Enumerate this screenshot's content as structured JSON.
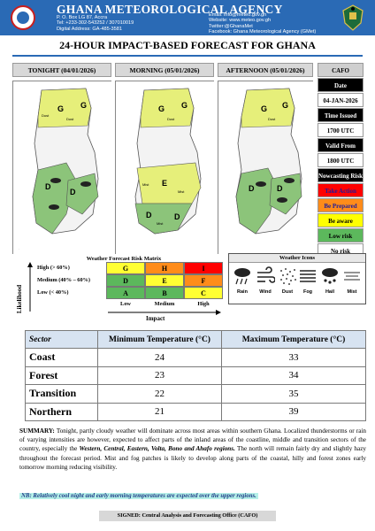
{
  "header": {
    "agency": "GHANA METEOROLOGICAL AGENCY",
    "address_lines": [
      "P. O. Box LG 87, Accra",
      "Tel: +233-302-543252 / 307010019",
      "Digital Address: GA-485-3581"
    ],
    "contact_lines": [
      "Email: info@meteo.gov.gh",
      "Website: www.meteo.gov.gh",
      "Twitter:@GhanaMet",
      "Facebook: Ghana Meteorological Agency (GMet)"
    ],
    "accent_color": "#2a6ab5"
  },
  "title": "24-HOUR IMPACT-BASED FORECAST FOR GHANA",
  "panels": [
    {
      "label": "TONIGHT (04/01/2026)"
    },
    {
      "label": "MORNING (05/01/2026)"
    },
    {
      "label": "AFTERNOON (05/01/2026)"
    }
  ],
  "map_labels": {
    "dust": "Dust",
    "mist": "Mist",
    "risk_letters": [
      "G",
      "D",
      "E"
    ]
  },
  "cafo": {
    "title": "CAFO",
    "date_label": "Date",
    "date": "04-JAN-2026",
    "time_issued_label": "Time Issued",
    "time_issued": "1700 UTC",
    "valid_from_label": "Valid From",
    "valid_from": "1800 UTC",
    "nowcasting_label": "Nowcasting Risk",
    "risks": [
      {
        "label": "Take Action",
        "color": "#ff0000",
        "text_color": "#1c1c9c"
      },
      {
        "label": "Be Prepared",
        "color": "#ff8c1a",
        "text_color": "#1c1c9c"
      },
      {
        "label": "Be aware",
        "color": "#ffff00",
        "text_color": "#000000"
      },
      {
        "label": "Low risk",
        "color": "#5cb85c",
        "text_color": "#000000"
      },
      {
        "label": "No risk",
        "color": "#ffffff",
        "text_color": "#000000"
      }
    ]
  },
  "risk_matrix": {
    "title": "Weather Forecast Risk Matrix",
    "y_label": "Likelihood",
    "x_label": "Impact",
    "rows": [
      {
        "label": "High (> 60%)",
        "cells": [
          "G",
          "H",
          "I"
        ]
      },
      {
        "label": "Medium (40% – 60%)",
        "cells": [
          "D",
          "E",
          "F"
        ]
      },
      {
        "label": "Low (< 40%)",
        "cells": [
          "A",
          "B",
          "C"
        ]
      }
    ],
    "cols": [
      "Low",
      "Medium",
      "High"
    ],
    "colors": [
      [
        "#ffff33",
        "#ff8c1a",
        "#ff0000"
      ],
      [
        "#5cb85c",
        "#ffff33",
        "#ff8c1a"
      ],
      [
        "#5cb85c",
        "#5cb85c",
        "#ffff33"
      ]
    ]
  },
  "weather_icons": {
    "title": "Weather Icons",
    "items": [
      {
        "label": "Rain",
        "icon": "rain-icon"
      },
      {
        "label": "Wind",
        "icon": "wind-icon"
      },
      {
        "label": "Dust",
        "icon": "dust-icon"
      },
      {
        "label": "Fog",
        "icon": "fog-icon"
      },
      {
        "label": "Hail",
        "icon": "hail-icon"
      },
      {
        "label": "Mist",
        "icon": "mist-icon"
      }
    ]
  },
  "temperature_table": {
    "headers": [
      "Sector",
      "Minimum Temperature (°C)",
      "Maximum Temperature (°C)"
    ],
    "rows": [
      [
        "Coast",
        "24",
        "33"
      ],
      [
        "Forest",
        "23",
        "34"
      ],
      [
        "Transition",
        "22",
        "35"
      ],
      [
        "Northern",
        "21",
        "39"
      ]
    ]
  },
  "summary": {
    "label": "SUMMARY:",
    "text_1": " Tonight, partly cloudy weather will dominate across most areas within southern Ghana. Localized thunderstorms or rain of varying intensities are however, expected to affect parts of the inland areas of the coastline, middle and transition sectors of the country, especially the ",
    "regions": "Western, Central, Eastern, Volta, Bono and Ahafo regions.",
    "text_2": " The north will remain fairly dry and slightly hazy throughout the forecast period. Mist and fog patches is likely to develop along parts of the coastal, hilly and forest zones early tomorrow morning reducing visibility."
  },
  "note": "NB: Relatively cool night and early morning temperatures are expected over the upper regions.",
  "signed": "SIGNED: Central Analysis and Forecasting Office (CAFO)"
}
